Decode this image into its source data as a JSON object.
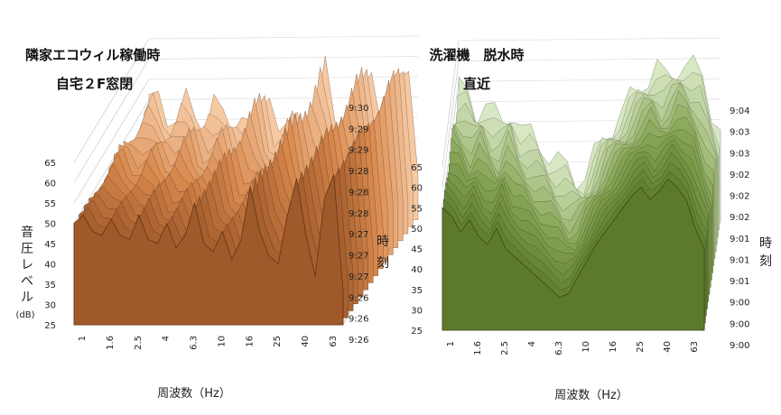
{
  "chart_data": [
    {
      "type": "surface",
      "title_lines": [
        "隣家エコウィル稼働時",
        "自宅２F窓閉"
      ],
      "xlabel": "周波数（Hz）",
      "ylabel_chars": [
        "音",
        "圧",
        "レ",
        "ベ",
        "ル"
      ],
      "ylabel_unit": "(dB)",
      "zlabel_chars": [
        "時",
        "刻"
      ],
      "x_ticks": [
        "1",
        "1.6",
        "2.5",
        "4",
        "6.3",
        "10",
        "16",
        "25",
        "40",
        "63"
      ],
      "y_ticks": [
        "25",
        "30",
        "35",
        "40",
        "45",
        "50",
        "55",
        "60",
        "65"
      ],
      "ylim": [
        25,
        65
      ],
      "time_ticks": [
        "9:26",
        "9:26",
        "9:26",
        "9:27",
        "9:27",
        "9:27",
        "9:28",
        "9:28",
        "9:28",
        "9:29",
        "9:29",
        "9:30"
      ],
      "colors": {
        "front": "#a0592a",
        "mid": "#d98a4e",
        "top": "#f6c9a3"
      },
      "profile_db": [
        50,
        52,
        48,
        47,
        51,
        47,
        46,
        52,
        46,
        45,
        50,
        44,
        47,
        55,
        45,
        43,
        48,
        41,
        46,
        59,
        48,
        42,
        40,
        52,
        61,
        47,
        37,
        56,
        62,
        33
      ]
    },
    {
      "type": "surface",
      "title_lines": [
        "洗濯機　脱水時",
        "直近"
      ],
      "xlabel": "周波数（Hz）",
      "zlabel_chars": [
        "時",
        "刻"
      ],
      "x_ticks": [
        "1",
        "1.6",
        "2.5",
        "4",
        "6.3",
        "10",
        "16",
        "25",
        "40",
        "63"
      ],
      "y_ticks": [
        "25",
        "30",
        "35",
        "40",
        "45",
        "50",
        "55",
        "60",
        "65"
      ],
      "ylim": [
        25,
        65
      ],
      "time_ticks": [
        "9:00",
        "9:00",
        "9:00",
        "9:01",
        "9:01",
        "9:01",
        "9:02",
        "9:02",
        "9:02",
        "9:03",
        "9:03",
        "9:04"
      ],
      "colors": {
        "front": "#5d7a2c",
        "mid": "#88a656",
        "top": "#d9e8c4"
      },
      "profile_db": [
        55,
        53,
        49,
        52,
        48,
        46,
        50,
        45,
        43,
        41,
        39,
        37,
        35,
        33,
        34,
        38,
        42,
        46,
        49,
        52,
        55,
        58,
        60,
        57,
        59,
        62,
        60,
        57,
        50,
        45
      ]
    }
  ]
}
